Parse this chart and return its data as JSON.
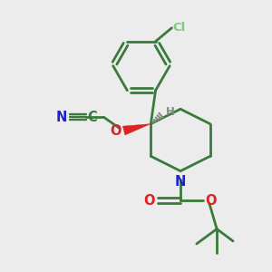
{
  "background_color": "#ececec",
  "bond_color": "#3a7a3a",
  "cl_color": "#7fc97f",
  "n_color": "#2222cc",
  "o_color": "#dd2222",
  "h_color": "#888888",
  "line_width": 2.0,
  "figsize": [
    3.0,
    3.0
  ],
  "dpi": 100,
  "xlim": [
    0,
    10
  ],
  "ylim": [
    0,
    10
  ]
}
